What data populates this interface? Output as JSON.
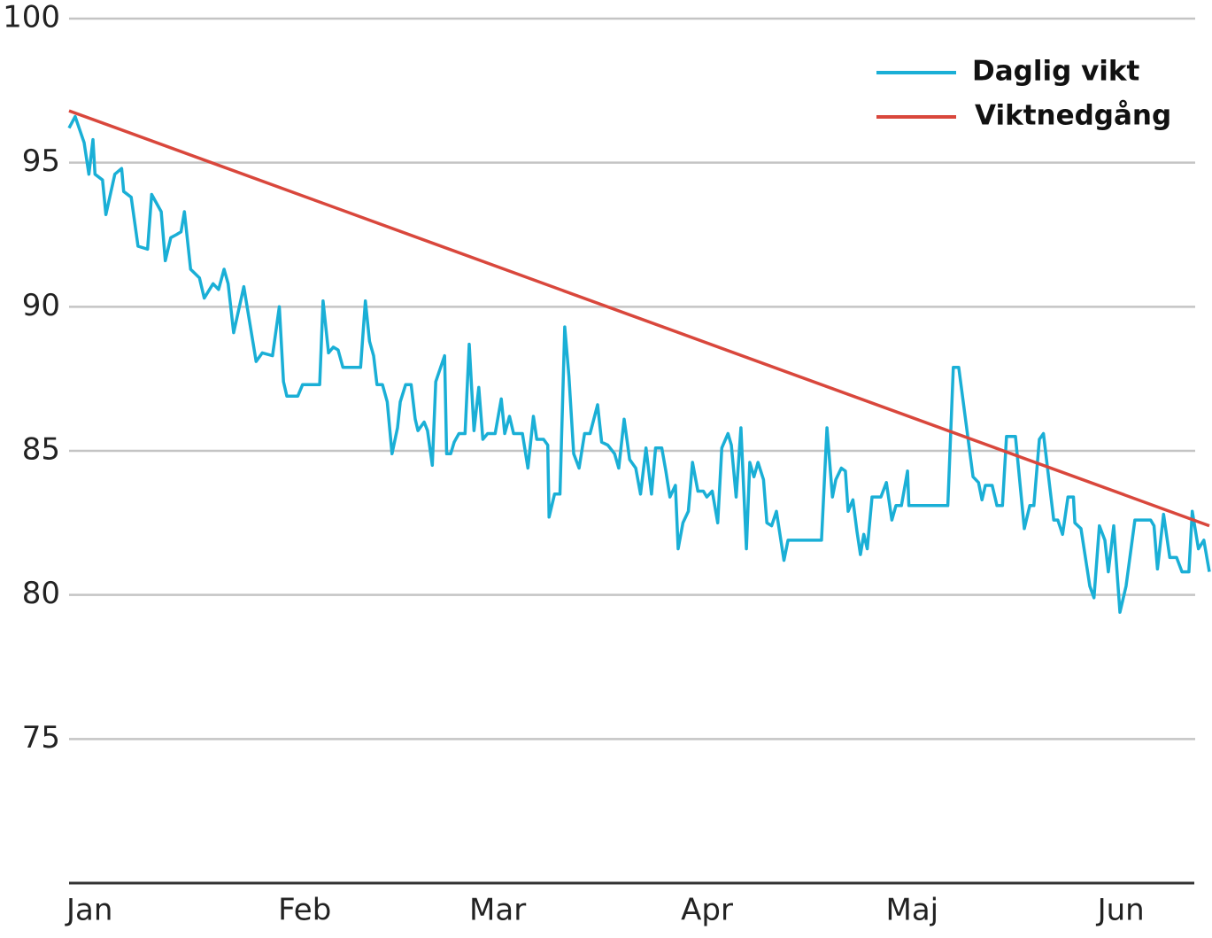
{
  "chart_data": {
    "type": "line",
    "xlim": [
      0,
      167
    ],
    "xticks": [
      {
        "value": 0,
        "label": "Jan"
      },
      {
        "value": 31,
        "label": "Feb"
      },
      {
        "value": 59,
        "label": "Mar"
      },
      {
        "value": 90,
        "label": "Apr"
      },
      {
        "value": 120,
        "label": "Maj"
      },
      {
        "value": 151,
        "label": "Jun"
      }
    ],
    "ylim": [
      70,
      100
    ],
    "yticks": [
      75,
      80,
      85,
      90,
      95,
      100
    ],
    "grid": true,
    "legend": "upper right",
    "series": [
      {
        "name": "Daglig vikt",
        "color": "#1aafd6",
        "x": [
          0,
          0.9,
          2.2,
          2.9,
          3.5,
          3.8,
          4.9,
          5.4,
          6.7,
          7.7,
          8.0,
          9.1,
          10.1,
          11.5,
          12.1,
          13.5,
          14.1,
          14.9,
          15.7,
          16.4,
          16.9,
          17.8,
          19.1,
          19.8,
          21.1,
          21.9,
          22.7,
          23.3,
          24.1,
          25.6,
          27.4,
          28.3,
          29.8,
          30.8,
          31.4,
          31.9,
          33.5,
          34.2,
          36.7,
          37.2,
          38.0,
          38.7,
          39.4,
          40.1,
          42.7,
          43.4,
          44.0,
          44.6,
          45.1,
          45.9,
          46.6,
          47.3,
          48.1,
          48.5,
          49.3,
          50.1,
          50.7,
          51.1,
          52.0,
          52.5,
          53.2,
          53.7,
          55.0,
          55.3,
          55.9,
          56.4,
          57.1,
          58.0,
          58.6,
          59.3,
          60.0,
          60.6,
          61.3,
          62.4,
          63.3,
          63.8,
          64.5,
          65.1,
          66.4,
          67.2,
          68.0,
          68.5,
          69.5,
          70.1,
          70.3,
          71.1,
          71.9,
          72.6,
          73.2,
          73.9,
          74.7,
          75.5,
          76.3,
          77.4,
          78.0,
          78.9,
          79.9,
          80.5,
          81.3,
          82.1,
          83.0,
          83.7,
          84.5,
          85.3,
          85.9,
          86.8,
          87.4,
          88.0,
          88.8,
          89.2,
          89.9,
          90.7,
          91.3,
          92.1,
          92.9,
          93.4,
          94.2,
          95.0,
          95.6,
          96.5,
          97.0,
          97.7,
          98.4,
          99.2,
          99.7,
          100.3,
          100.9,
          101.7,
          102.2,
          102.9,
          103.6,
          104.7,
          105.3,
          110.2,
          111.0,
          111.8,
          112.3,
          113.1,
          113.7,
          114.1,
          114.8,
          115.4,
          115.9,
          116.4,
          116.9,
          117.6,
          118.9,
          119.7,
          120.5,
          121.1,
          121.9,
          122.8,
          123.0,
          128.7,
          129.5,
          130.3,
          132.4,
          133.2,
          133.7,
          134.2,
          135.2,
          135.9,
          136.7,
          137.3,
          138.6,
          139.9,
          140.7,
          141.3,
          142.1,
          142.7,
          144.2,
          144.8,
          145.5,
          146.3,
          147.1,
          147.3,
          148.2,
          149.5,
          150.1,
          150.9,
          151.7,
          152.2,
          153.0,
          153.9,
          154.8,
          156.1,
          158.4,
          158.9,
          159.4,
          160.3,
          161.2,
          162.2,
          163.0,
          164.0,
          164.5,
          165.4,
          166.2,
          167.0
        ],
        "values": [
          96.2,
          96.6,
          95.7,
          94.6,
          95.8,
          94.6,
          94.4,
          93.2,
          94.6,
          94.8,
          94.0,
          93.8,
          92.1,
          92.0,
          93.9,
          93.3,
          91.6,
          92.4,
          92.5,
          92.6,
          93.3,
          91.3,
          91.0,
          90.3,
          90.8,
          90.6,
          91.3,
          90.8,
          89.1,
          90.7,
          88.1,
          88.4,
          88.3,
          90.0,
          87.4,
          86.9,
          86.9,
          87.3,
          87.3,
          90.2,
          88.4,
          88.6,
          88.5,
          87.9,
          87.9,
          90.2,
          88.8,
          88.3,
          87.3,
          87.3,
          86.7,
          84.9,
          85.8,
          86.7,
          87.3,
          87.3,
          86.1,
          85.7,
          86.0,
          85.7,
          84.5,
          87.4,
          88.3,
          84.9,
          84.9,
          85.3,
          85.6,
          85.6,
          88.7,
          85.7,
          87.2,
          85.4,
          85.6,
          85.6,
          86.8,
          85.6,
          86.2,
          85.6,
          85.6,
          84.4,
          86.2,
          85.4,
          85.4,
          85.2,
          82.7,
          83.5,
          83.5,
          89.3,
          87.6,
          84.9,
          84.4,
          85.6,
          85.6,
          86.6,
          85.3,
          85.2,
          84.9,
          84.4,
          86.1,
          84.7,
          84.4,
          83.5,
          85.1,
          83.5,
          85.1,
          85.1,
          84.3,
          83.4,
          83.8,
          81.6,
          82.5,
          82.9,
          84.6,
          83.6,
          83.6,
          83.4,
          83.6,
          82.5,
          85.1,
          85.6,
          85.2,
          83.4,
          85.8,
          81.6,
          84.6,
          84.1,
          84.6,
          84.0,
          82.5,
          82.4,
          82.9,
          81.2,
          81.9,
          81.9,
          85.8,
          83.4,
          84.0,
          84.4,
          84.3,
          82.9,
          83.3,
          82.2,
          81.4,
          82.1,
          81.6,
          83.4,
          83.4,
          83.9,
          82.6,
          83.1,
          83.1,
          84.3,
          83.1,
          83.1,
          87.9,
          87.9,
          84.1,
          83.9,
          83.3,
          83.8,
          83.8,
          83.1,
          83.1,
          85.5,
          85.5,
          82.3,
          83.1,
          83.1,
          85.4,
          85.6,
          82.6,
          82.6,
          82.1,
          83.4,
          83.4,
          82.5,
          82.3,
          80.3,
          79.9,
          82.4,
          81.9,
          80.8,
          82.4,
          79.4,
          80.3,
          82.6,
          82.6,
          82.4,
          80.9,
          82.8,
          81.3,
          81.3,
          80.8,
          80.8,
          82.9,
          81.6,
          81.9,
          80.8
        ]
      },
      {
        "name": "Viktnedgång",
        "color": "#d9473c",
        "x": [
          0,
          167
        ],
        "values": [
          96.8,
          82.4
        ]
      }
    ]
  }
}
